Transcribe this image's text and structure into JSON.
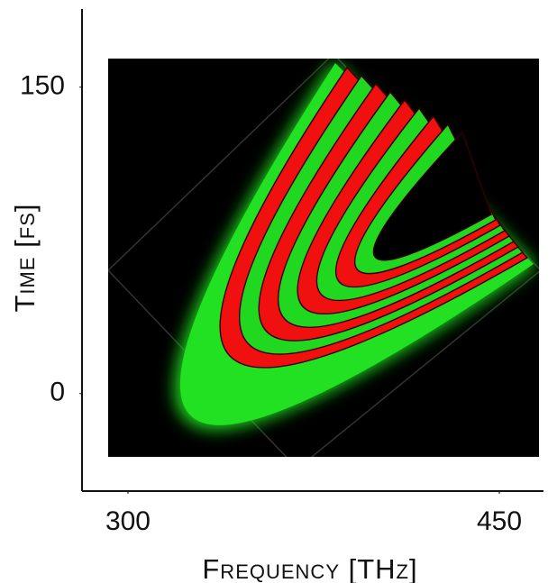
{
  "chart_data": {
    "type": "image-plot",
    "x_label": "Frequency [THz]",
    "y_label": "Time [fs]",
    "xlim": [
      292,
      466
    ],
    "xticks": [
      300,
      450
    ],
    "ylim": [
      -31,
      164
    ],
    "yticks": [
      0,
      150
    ]
  }
}
